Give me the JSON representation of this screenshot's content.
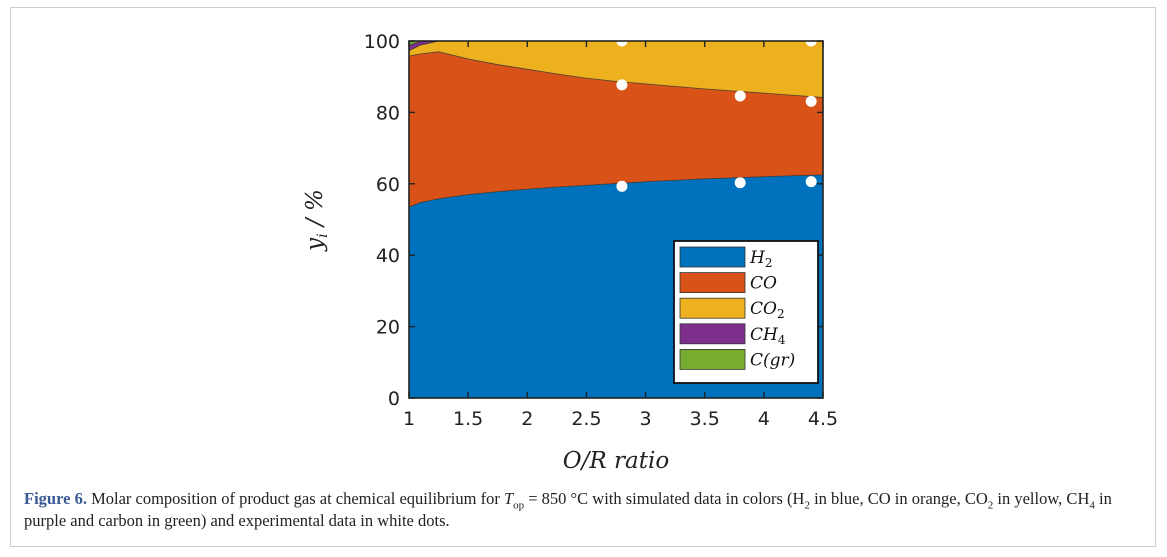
{
  "chart_data": {
    "type": "area",
    "stacked": true,
    "xlabel": "O/R ratio",
    "ylabel": "y_i / %",
    "xlim": [
      1,
      4.5
    ],
    "ylim": [
      0,
      100
    ],
    "xticks": [
      "1",
      "1.5",
      "2",
      "2.5",
      "3",
      "3.5",
      "4",
      "4.5"
    ],
    "yticks": [
      "0",
      "20",
      "40",
      "60",
      "80",
      "100"
    ],
    "grid": false,
    "legend_position": "bottom-right",
    "x": [
      1.0,
      1.1,
      1.25,
      1.5,
      1.75,
      2.0,
      2.25,
      2.5,
      2.75,
      3.0,
      3.25,
      3.5,
      3.75,
      4.0,
      4.25,
      4.5
    ],
    "series": [
      {
        "name": "H2",
        "legend": "H",
        "sub": "2",
        "color": "#0072BD",
        "values": [
          53.5,
          54.8,
          55.8,
          57.0,
          57.8,
          58.5,
          59.1,
          59.6,
          60.1,
          60.6,
          61.0,
          61.4,
          61.7,
          62.0,
          62.3,
          62.5
        ]
      },
      {
        "name": "CO",
        "legend": "CO",
        "sub": "",
        "color": "#D95319",
        "values": [
          42.3,
          41.6,
          41.2,
          38.0,
          35.6,
          33.6,
          31.7,
          30.0,
          28.6,
          27.4,
          26.3,
          25.2,
          24.3,
          23.4,
          22.5,
          21.7
        ]
      },
      {
        "name": "CO2",
        "legend": "CO",
        "sub": "2",
        "color": "#EDB120",
        "values": [
          1.5,
          2.5,
          3.0,
          5.0,
          6.6,
          7.9,
          9.2,
          10.4,
          11.3,
          12.0,
          12.7,
          13.4,
          14.0,
          14.6,
          15.2,
          15.8
        ]
      },
      {
        "name": "CH4",
        "legend": "CH",
        "sub": "4",
        "color": "#7E2F8E",
        "values": [
          1.5,
          1.0,
          0,
          0,
          0,
          0,
          0,
          0,
          0,
          0,
          0,
          0,
          0,
          0,
          0,
          0
        ]
      },
      {
        "name": "C(gr)",
        "legend": "C(gr)",
        "sub": "",
        "color": "#77AC30",
        "values": [
          1.2,
          0.1,
          0,
          0,
          0,
          0,
          0,
          0,
          0,
          0,
          0,
          0,
          0,
          0,
          0,
          0
        ]
      }
    ],
    "experimental_points": {
      "color": "#ffffff",
      "x": [
        2.8,
        2.8,
        2.8,
        3.8,
        3.8,
        4.4,
        4.4,
        4.4
      ],
      "y": [
        59.3,
        87.7,
        100,
        60.3,
        84.6,
        60.6,
        83.1,
        100
      ]
    }
  },
  "caption": {
    "label": "Figure 6.",
    "text_1": " Molar composition of product gas at chemical equilibrium for ",
    "t": "T",
    "t_sub": "op",
    "text_2": " = 850 °C with simulated data in colors (H",
    "h2_sub": "2",
    "text_3": " in blue, CO in orange, CO",
    "co2_sub": "2",
    "text_4": " in yellow, CH",
    "ch4_sub": "4",
    "text_5": " in purple and carbon in green) and experimental data in white dots."
  }
}
